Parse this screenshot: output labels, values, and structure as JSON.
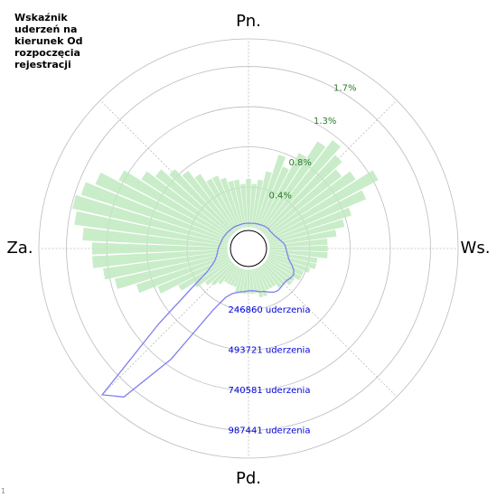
{
  "chart_data": {
    "type": "polar",
    "title": "Wskaźnik\nuderzeń na\nkierunek Od\nrozpoczęcia\nrejestracji",
    "footnote": "1",
    "directions": [
      "Pn.",
      "Ws.",
      "Pd.",
      "Za."
    ],
    "theta": [
      0,
      5,
      10,
      15,
      20,
      25,
      30,
      35,
      40,
      45,
      50,
      55,
      60,
      65,
      70,
      75,
      80,
      85,
      90,
      95,
      100,
      105,
      110,
      115,
      120,
      125,
      130,
      135,
      140,
      145,
      150,
      155,
      160,
      165,
      170,
      175,
      180,
      185,
      190,
      195,
      200,
      205,
      210,
      215,
      220,
      225,
      230,
      235,
      240,
      245,
      250,
      255,
      260,
      265,
      270,
      275,
      280,
      285,
      290,
      295,
      300,
      305,
      310,
      315,
      320,
      325,
      330,
      335,
      340,
      345,
      350,
      355
    ],
    "series": [
      {
        "color": "#bfe9bf",
        "values": [
          0.5,
          0.45,
          0.5,
          0.6,
          0.8,
          0.7,
          0.9,
          1.1,
          1.2,
          1.1,
          1.0,
          1.1,
          1.3,
          1.1,
          0.9,
          0.8,
          0.7,
          0.6,
          0.6,
          0.6,
          0.5,
          0.5,
          0.45,
          0.4,
          0.4,
          0.35,
          0.35,
          0.3,
          0.3,
          0.25,
          0.25,
          0.25,
          0.3,
          0.3,
          0.25,
          0.25,
          0.25,
          0.25,
          0.25,
          0.25,
          0.2,
          0.2,
          0.2,
          0.2,
          0.25,
          0.3,
          0.35,
          0.45,
          0.6,
          0.8,
          1.0,
          1.2,
          1.3,
          1.4,
          1.4,
          1.5,
          1.6,
          1.65,
          1.6,
          1.5,
          1.3,
          1.1,
          1.0,
          0.9,
          0.8,
          0.7,
          0.6,
          0.6,
          0.55,
          0.5,
          0.5,
          0.45
        ]
      },
      {
        "color": "#8080f0",
        "axis": "y2",
        "values": [
          25000,
          25000,
          27000,
          28000,
          30000,
          32000,
          35000,
          38000,
          40000,
          42000,
          40000,
          42000,
          45000,
          50000,
          60000,
          70000,
          85000,
          95000,
          100000,
          105000,
          115000,
          125000,
          150000,
          175000,
          190000,
          185000,
          175000,
          175000,
          180000,
          185000,
          180000,
          165000,
          150000,
          145000,
          135000,
          130000,
          130000,
          135000,
          140000,
          150000,
          165000,
          200000,
          310000,
          700000,
          1060000,
          1140000,
          590000,
          300000,
          170000,
          120000,
          90000,
          75000,
          65000,
          60000,
          55000,
          50000,
          45000,
          42000,
          40000,
          38000,
          35000,
          33000,
          32000,
          30000,
          29000,
          28000,
          27000,
          26000,
          25000,
          25000,
          25000,
          25000
        ]
      }
    ],
    "ylim": [
      0,
      1.95
    ],
    "yticks": [
      {
        "value": 0.4,
        "label": "0.4%"
      },
      {
        "value": 0.8,
        "label": "0.8%"
      },
      {
        "value": 1.3,
        "label": "1.3%"
      },
      {
        "value": 1.7,
        "label": "1.7%"
      }
    ],
    "y2lim": [
      0,
      1157000
    ],
    "y2ticks": [
      {
        "value": 246860,
        "label": "246860 uderzenia"
      },
      {
        "value": 493721,
        "label": "493721 uderzenia"
      },
      {
        "value": 740581,
        "label": "740581 uderzenia"
      },
      {
        "value": 987441,
        "label": "987441 uderzenia"
      }
    ],
    "grid": true
  }
}
